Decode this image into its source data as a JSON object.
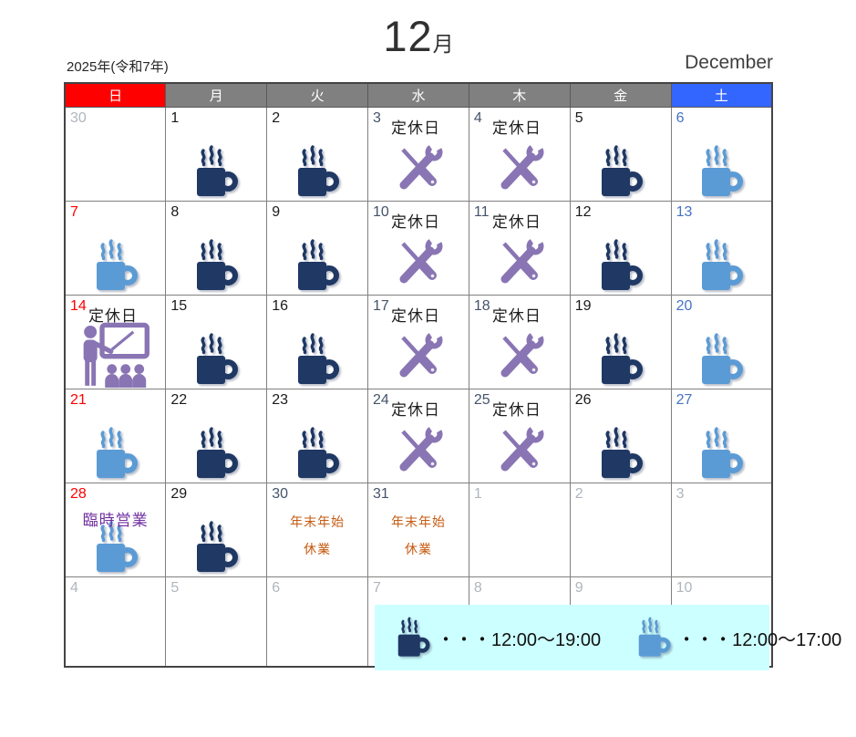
{
  "header": {
    "year_label": "2025年(令和7年)",
    "month_number": "12",
    "month_suffix": "月",
    "month_english": "December"
  },
  "weekday_header": [
    {
      "label": "日",
      "bg": "#FF0000"
    },
    {
      "label": "月",
      "bg": "#808080"
    },
    {
      "label": "火",
      "bg": "#808080"
    },
    {
      "label": "水",
      "bg": "#808080"
    },
    {
      "label": "木",
      "bg": "#808080"
    },
    {
      "label": "金",
      "bg": "#808080"
    },
    {
      "label": "土",
      "bg": "#3366FF"
    }
  ],
  "labels": {
    "closed_day": "定休日",
    "special_open": "臨時営業",
    "yearend_line1": "年末年始",
    "yearend_line2": "休業"
  },
  "colors": {
    "mug_dark": "#1F3864",
    "mug_light": "#5B9BD5",
    "tools_purple": "#8975B3",
    "closed_cell_bg": "#D9DEE6",
    "legend_bg": "#CCFFFF",
    "yearend_text": "#C55A11",
    "special_text": "#7030A0",
    "num_black": "#1a1a1a",
    "num_sunday": "#FF0000",
    "num_saturday": "#4472C4",
    "num_slate": "#44546A",
    "num_outmonth": "#B0B6BE"
  },
  "weeks": [
    [
      {
        "day": "30",
        "type": "out",
        "num_color": "#B0B6BE"
      },
      {
        "day": "1",
        "type": "open_dark",
        "num_color": "#1a1a1a"
      },
      {
        "day": "2",
        "type": "open_dark",
        "num_color": "#1a1a1a"
      },
      {
        "day": "3",
        "type": "closed",
        "num_color": "#44546A"
      },
      {
        "day": "4",
        "type": "closed",
        "num_color": "#44546A"
      },
      {
        "day": "5",
        "type": "open_dark",
        "num_color": "#1a1a1a"
      },
      {
        "day": "6",
        "type": "open_light",
        "num_color": "#4472C4"
      }
    ],
    [
      {
        "day": "7",
        "type": "open_light",
        "num_color": "#FF0000"
      },
      {
        "day": "8",
        "type": "open_dark",
        "num_color": "#1a1a1a"
      },
      {
        "day": "9",
        "type": "open_dark",
        "num_color": "#1a1a1a"
      },
      {
        "day": "10",
        "type": "closed",
        "num_color": "#44546A"
      },
      {
        "day": "11",
        "type": "closed",
        "num_color": "#44546A"
      },
      {
        "day": "12",
        "type": "open_dark",
        "num_color": "#1a1a1a"
      },
      {
        "day": "13",
        "type": "open_light",
        "num_color": "#4472C4"
      }
    ],
    [
      {
        "day": "14",
        "type": "closed_seminar",
        "num_color": "#FF0000"
      },
      {
        "day": "15",
        "type": "open_dark",
        "num_color": "#1a1a1a"
      },
      {
        "day": "16",
        "type": "open_dark",
        "num_color": "#1a1a1a"
      },
      {
        "day": "17",
        "type": "closed",
        "num_color": "#44546A"
      },
      {
        "day": "18",
        "type": "closed",
        "num_color": "#44546A"
      },
      {
        "day": "19",
        "type": "open_dark",
        "num_color": "#1a1a1a"
      },
      {
        "day": "20",
        "type": "open_light",
        "num_color": "#4472C4"
      }
    ],
    [
      {
        "day": "21",
        "type": "open_light",
        "num_color": "#FF0000"
      },
      {
        "day": "22",
        "type": "open_dark",
        "num_color": "#1a1a1a"
      },
      {
        "day": "23",
        "type": "open_dark",
        "num_color": "#1a1a1a"
      },
      {
        "day": "24",
        "type": "closed",
        "num_color": "#44546A"
      },
      {
        "day": "25",
        "type": "closed",
        "num_color": "#44546A"
      },
      {
        "day": "26",
        "type": "open_dark",
        "num_color": "#1a1a1a"
      },
      {
        "day": "27",
        "type": "open_light",
        "num_color": "#4472C4"
      }
    ],
    [
      {
        "day": "28",
        "type": "special",
        "num_color": "#FF0000"
      },
      {
        "day": "29",
        "type": "open_dark",
        "num_color": "#1a1a1a"
      },
      {
        "day": "30",
        "type": "yearend",
        "num_color": "#44546A"
      },
      {
        "day": "31",
        "type": "yearend",
        "num_color": "#44546A"
      },
      {
        "day": "1",
        "type": "out",
        "num_color": "#B0B6BE"
      },
      {
        "day": "2",
        "type": "out",
        "num_color": "#B0B6BE"
      },
      {
        "day": "3",
        "type": "out",
        "num_color": "#B0B6BE"
      }
    ],
    [
      {
        "day": "4",
        "type": "out",
        "num_color": "#B0B6BE"
      },
      {
        "day": "5",
        "type": "out",
        "num_color": "#B0B6BE"
      },
      {
        "day": "6",
        "type": "out",
        "num_color": "#B0B6BE"
      },
      {
        "day": "7",
        "type": "out",
        "num_color": "#B0B6BE"
      },
      {
        "day": "8",
        "type": "out",
        "num_color": "#B0B6BE"
      },
      {
        "day": "9",
        "type": "out",
        "num_color": "#B0B6BE"
      },
      {
        "day": "10",
        "type": "out",
        "num_color": "#B0B6BE"
      }
    ]
  ],
  "legend": {
    "items": [
      {
        "icon": "mug-dark-icon",
        "label": "・・・12:00～19:00"
      },
      {
        "icon": "mug-light-icon",
        "label": "・・・12:00～17:00"
      }
    ]
  }
}
